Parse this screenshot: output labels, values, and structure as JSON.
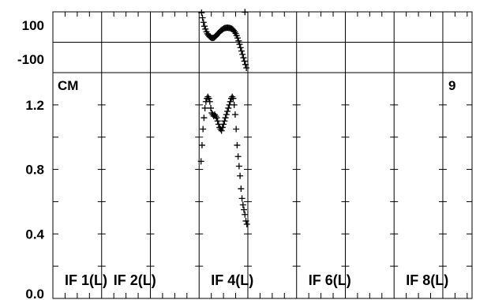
{
  "chart_data": [
    {
      "type": "scatter",
      "panel": "phase",
      "ylim": [
        -180,
        180
      ],
      "y_ticks": [
        {
          "value": 100,
          "label": "100"
        },
        {
          "value": -100,
          "label": "-100"
        }
      ],
      "zero_line": true,
      "marker": "plus",
      "series": [
        {
          "x": [
            4.05,
            4.07,
            4.09,
            4.11,
            4.13,
            4.15,
            4.17,
            4.19,
            4.21,
            4.23,
            4.25,
            4.27,
            4.29,
            4.31,
            4.33,
            4.35,
            4.37,
            4.39,
            4.41,
            4.43,
            4.45,
            4.47,
            4.49,
            4.51,
            4.53,
            4.55,
            4.57,
            4.59,
            4.61,
            4.63,
            4.65,
            4.67,
            4.69,
            4.71,
            4.73,
            4.75,
            4.77,
            4.79,
            4.81,
            4.83,
            4.85,
            4.87,
            4.89,
            4.91,
            4.93,
            4.95,
            4.97
          ],
          "y": [
            175,
            145,
            118,
            95,
            78,
            62,
            50,
            42,
            35,
            30,
            27,
            25,
            26,
            28,
            33,
            38,
            45,
            52,
            58,
            64,
            70,
            74,
            78,
            82,
            84,
            85,
            86,
            86,
            85,
            84,
            82,
            80,
            76,
            70,
            62,
            52,
            40,
            25,
            8,
            -12,
            -32,
            -52,
            -72,
            -92,
            -112,
            -132,
            -152
          ],
          "outlier": {
            "x": 4.94,
            "y": 188
          }
        }
      ]
    },
    {
      "type": "scatter",
      "panel": "amplitude",
      "ylim": [
        0.0,
        1.4
      ],
      "y_ticks": [
        {
          "value": 1.2,
          "label": "1.2"
        },
        {
          "value": 0.8,
          "label": "0.8"
        },
        {
          "value": 0.4,
          "label": "0.4"
        },
        {
          "value": 0.0,
          "label": "0.0"
        }
      ],
      "top_left_label": "CM",
      "top_right_label": "9",
      "marker": "plus",
      "series": [
        {
          "x": [
            4.04,
            4.06,
            4.08,
            4.1,
            4.12,
            4.14,
            4.16,
            4.18,
            4.2,
            4.22,
            4.24,
            4.26,
            4.28,
            4.3,
            4.32,
            4.34,
            4.36,
            4.38,
            4.4,
            4.42,
            4.44,
            4.46,
            4.48,
            4.5,
            4.52,
            4.54,
            4.56,
            4.58,
            4.6,
            4.62,
            4.64,
            4.66,
            4.68,
            4.7,
            4.72,
            4.74,
            4.76,
            4.78,
            4.8,
            4.82,
            4.84,
            4.86,
            4.88,
            4.9,
            4.92,
            4.94,
            4.96,
            4.98
          ],
          "y": [
            0.85,
            0.95,
            1.05,
            1.12,
            1.18,
            1.22,
            1.24,
            1.25,
            1.24,
            1.22,
            1.18,
            1.15,
            1.14,
            1.13,
            1.14,
            1.13,
            1.12,
            1.1,
            1.08,
            1.06,
            1.05,
            1.04,
            1.06,
            1.08,
            1.1,
            1.12,
            1.14,
            1.16,
            1.18,
            1.2,
            1.22,
            1.24,
            1.25,
            1.24,
            1.2,
            1.14,
            1.05,
            0.95,
            0.88,
            0.82,
            0.76,
            0.68,
            0.62,
            0.58,
            0.55,
            0.52,
            0.48,
            0.46
          ]
        }
      ]
    }
  ],
  "x_range": [
    1,
    9.6
  ],
  "if_labels": [
    {
      "x": 1,
      "text": "IF 1(L)"
    },
    {
      "x": 2,
      "text": "IF 2(L)"
    },
    {
      "x": 4,
      "text": "IF 4(L)"
    },
    {
      "x": 6,
      "text": "IF 6(L)"
    },
    {
      "x": 8,
      "text": "IF 8(L)"
    }
  ],
  "ticks_per_if": 4,
  "colors": {
    "line": "#000000",
    "background": "#ffffff"
  }
}
